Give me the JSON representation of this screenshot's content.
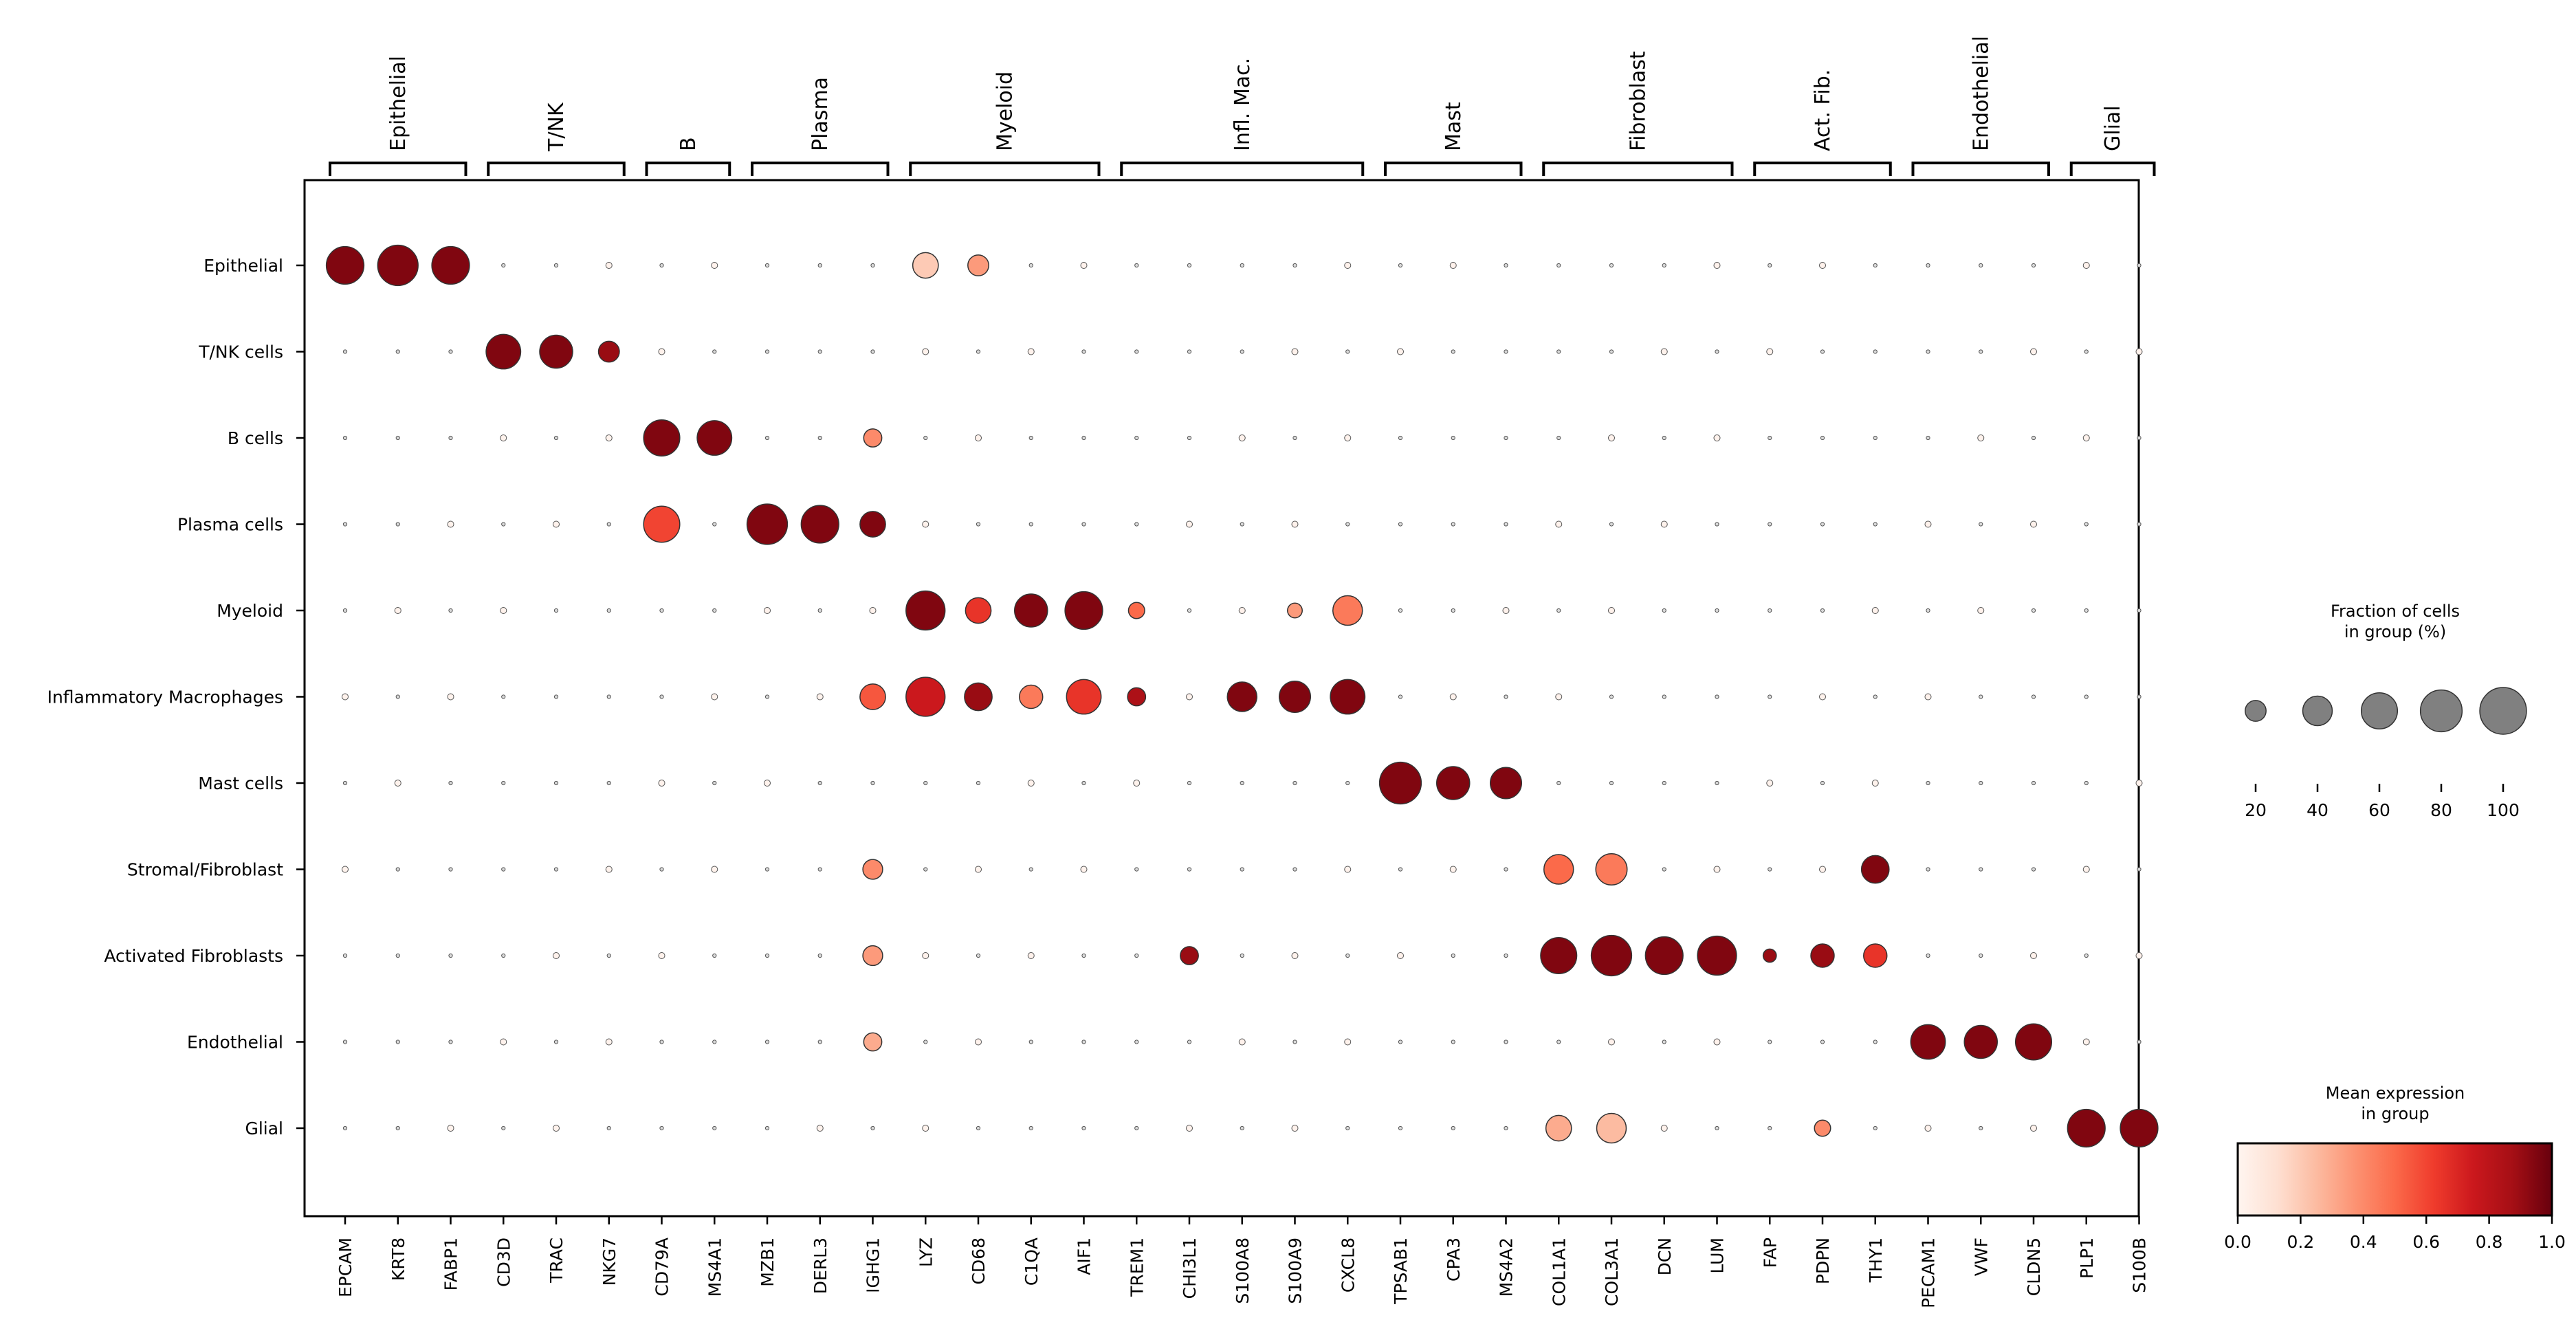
{
  "chart_data": {
    "type": "dotplot",
    "genes": [
      "EPCAM",
      "KRT8",
      "FABP1",
      "CD3D",
      "TRAC",
      "NKG7",
      "CD79A",
      "MS4A1",
      "MZB1",
      "DERL3",
      "IGHG1",
      "LYZ",
      "CD68",
      "C1QA",
      "AIF1",
      "TREM1",
      "CHI3L1",
      "S100A8",
      "S100A9",
      "CXCL8",
      "TPSAB1",
      "CPA3",
      "MS4A2",
      "COL1A1",
      "COL3A1",
      "DCN",
      "LUM",
      "FAP",
      "PDPN",
      "THY1",
      "PECAM1",
      "VWF",
      "CLDN5",
      "PLP1",
      "S100B"
    ],
    "groups": [
      "Epithelial",
      "T/NK cells",
      "B cells",
      "Plasma cells",
      "Myeloid",
      "Inflammatory Macrophages",
      "Mast cells",
      "Stromal/Fibroblast",
      "Activated Fibroblasts",
      "Endothelial",
      "Glial"
    ],
    "gene_groups": [
      {
        "label": "Epithelial",
        "start": 0,
        "end": 2
      },
      {
        "label": "T/NK",
        "start": 3,
        "end": 5
      },
      {
        "label": "B",
        "start": 6,
        "end": 7
      },
      {
        "label": "Plasma",
        "start": 8,
        "end": 10
      },
      {
        "label": "Myeloid",
        "start": 11,
        "end": 14
      },
      {
        "label": "Infl. Mac.",
        "start": 15,
        "end": 19
      },
      {
        "label": "Mast",
        "start": 20,
        "end": 22
      },
      {
        "label": "Fibroblast",
        "start": 23,
        "end": 26
      },
      {
        "label": "Act. Fib.",
        "start": 27,
        "end": 29
      },
      {
        "label": "Endothelial",
        "start": 30,
        "end": 32
      },
      {
        "label": "Glial",
        "start": 33,
        "end": 34
      }
    ],
    "dots": [
      {
        "group": 0,
        "gene": 0,
        "frac": 65,
        "expr": 0.95
      },
      {
        "group": 0,
        "gene": 1,
        "frac": 75,
        "expr": 0.95
      },
      {
        "group": 0,
        "gene": 2,
        "frac": 65,
        "expr": 0.95
      },
      {
        "group": 0,
        "gene": 11,
        "frac": 30,
        "expr": 0.2
      },
      {
        "group": 0,
        "gene": 12,
        "frac": 20,
        "expr": 0.35
      },
      {
        "group": 1,
        "gene": 3,
        "frac": 55,
        "expr": 0.95
      },
      {
        "group": 1,
        "gene": 4,
        "frac": 50,
        "expr": 0.95
      },
      {
        "group": 1,
        "gene": 5,
        "frac": 20,
        "expr": 0.9
      },
      {
        "group": 2,
        "gene": 6,
        "frac": 60,
        "expr": 0.95
      },
      {
        "group": 2,
        "gene": 7,
        "frac": 55,
        "expr": 0.95
      },
      {
        "group": 2,
        "gene": 10,
        "frac": 15,
        "expr": 0.4
      },
      {
        "group": 3,
        "gene": 6,
        "frac": 60,
        "expr": 0.6
      },
      {
        "group": 3,
        "gene": 8,
        "frac": 75,
        "expr": 0.95
      },
      {
        "group": 3,
        "gene": 9,
        "frac": 65,
        "expr": 0.95
      },
      {
        "group": 3,
        "gene": 10,
        "frac": 30,
        "expr": 0.95
      },
      {
        "group": 4,
        "gene": 11,
        "frac": 70,
        "expr": 0.95
      },
      {
        "group": 4,
        "gene": 12,
        "frac": 30,
        "expr": 0.65
      },
      {
        "group": 4,
        "gene": 13,
        "frac": 50,
        "expr": 0.95
      },
      {
        "group": 4,
        "gene": 14,
        "frac": 65,
        "expr": 0.95
      },
      {
        "group": 4,
        "gene": 15,
        "frac": 12,
        "expr": 0.5
      },
      {
        "group": 4,
        "gene": 18,
        "frac": 10,
        "expr": 0.35
      },
      {
        "group": 4,
        "gene": 19,
        "frac": 40,
        "expr": 0.45
      },
      {
        "group": 5,
        "gene": 10,
        "frac": 30,
        "expr": 0.55
      },
      {
        "group": 5,
        "gene": 11,
        "frac": 70,
        "expr": 0.75
      },
      {
        "group": 5,
        "gene": 12,
        "frac": 35,
        "expr": 0.9
      },
      {
        "group": 5,
        "gene": 13,
        "frac": 25,
        "expr": 0.45
      },
      {
        "group": 5,
        "gene": 14,
        "frac": 55,
        "expr": 0.65
      },
      {
        "group": 5,
        "gene": 15,
        "frac": 15,
        "expr": 0.85
      },
      {
        "group": 5,
        "gene": 17,
        "frac": 40,
        "expr": 0.95
      },
      {
        "group": 5,
        "gene": 18,
        "frac": 45,
        "expr": 0.95
      },
      {
        "group": 5,
        "gene": 19,
        "frac": 55,
        "expr": 0.95
      },
      {
        "group": 6,
        "gene": 20,
        "frac": 80,
        "expr": 0.95
      },
      {
        "group": 6,
        "gene": 21,
        "frac": 50,
        "expr": 0.95
      },
      {
        "group": 6,
        "gene": 22,
        "frac": 45,
        "expr": 0.95
      },
      {
        "group": 7,
        "gene": 10,
        "frac": 18,
        "expr": 0.4
      },
      {
        "group": 7,
        "gene": 23,
        "frac": 40,
        "expr": 0.5
      },
      {
        "group": 7,
        "gene": 24,
        "frac": 45,
        "expr": 0.45
      },
      {
        "group": 7,
        "gene": 29,
        "frac": 35,
        "expr": 0.95
      },
      {
        "group": 8,
        "gene": 10,
        "frac": 18,
        "expr": 0.35
      },
      {
        "group": 8,
        "gene": 16,
        "frac": 15,
        "expr": 0.9
      },
      {
        "group": 8,
        "gene": 23,
        "frac": 60,
        "expr": 0.95
      },
      {
        "group": 8,
        "gene": 24,
        "frac": 75,
        "expr": 0.95
      },
      {
        "group": 8,
        "gene": 25,
        "frac": 65,
        "expr": 0.95
      },
      {
        "group": 8,
        "gene": 26,
        "frac": 70,
        "expr": 0.95
      },
      {
        "group": 8,
        "gene": 27,
        "frac": 8,
        "expr": 0.9
      },
      {
        "group": 8,
        "gene": 28,
        "frac": 25,
        "expr": 0.9
      },
      {
        "group": 8,
        "gene": 29,
        "frac": 25,
        "expr": 0.65
      },
      {
        "group": 9,
        "gene": 10,
        "frac": 15,
        "expr": 0.3
      },
      {
        "group": 9,
        "gene": 30,
        "frac": 55,
        "expr": 0.95
      },
      {
        "group": 9,
        "gene": 31,
        "frac": 50,
        "expr": 0.95
      },
      {
        "group": 9,
        "gene": 32,
        "frac": 60,
        "expr": 0.95
      },
      {
        "group": 10,
        "gene": 23,
        "frac": 30,
        "expr": 0.3
      },
      {
        "group": 10,
        "gene": 24,
        "frac": 40,
        "expr": 0.25
      },
      {
        "group": 10,
        "gene": 28,
        "frac": 12,
        "expr": 0.4
      },
      {
        "group": 10,
        "gene": 33,
        "frac": 65,
        "expr": 0.95
      },
      {
        "group": 10,
        "gene": 34,
        "frac": 65,
        "expr": 0.95
      }
    ],
    "size_legend": {
      "title": "Fraction of cells\nin group (%)",
      "values": [
        "20",
        "40",
        "60",
        "80",
        "100"
      ]
    },
    "color_legend": {
      "title": "Mean expression\nin group",
      "ticks": [
        "0.0",
        "0.2",
        "0.4",
        "0.6",
        "0.8",
        "1.0"
      ],
      "range": [
        0,
        1
      ],
      "colormap": "Reds"
    },
    "colors": {
      "low": "#fff5f0",
      "mid": "#ef3b2c",
      "high": "#67000d",
      "size_legend_dot": "#808080"
    }
  }
}
